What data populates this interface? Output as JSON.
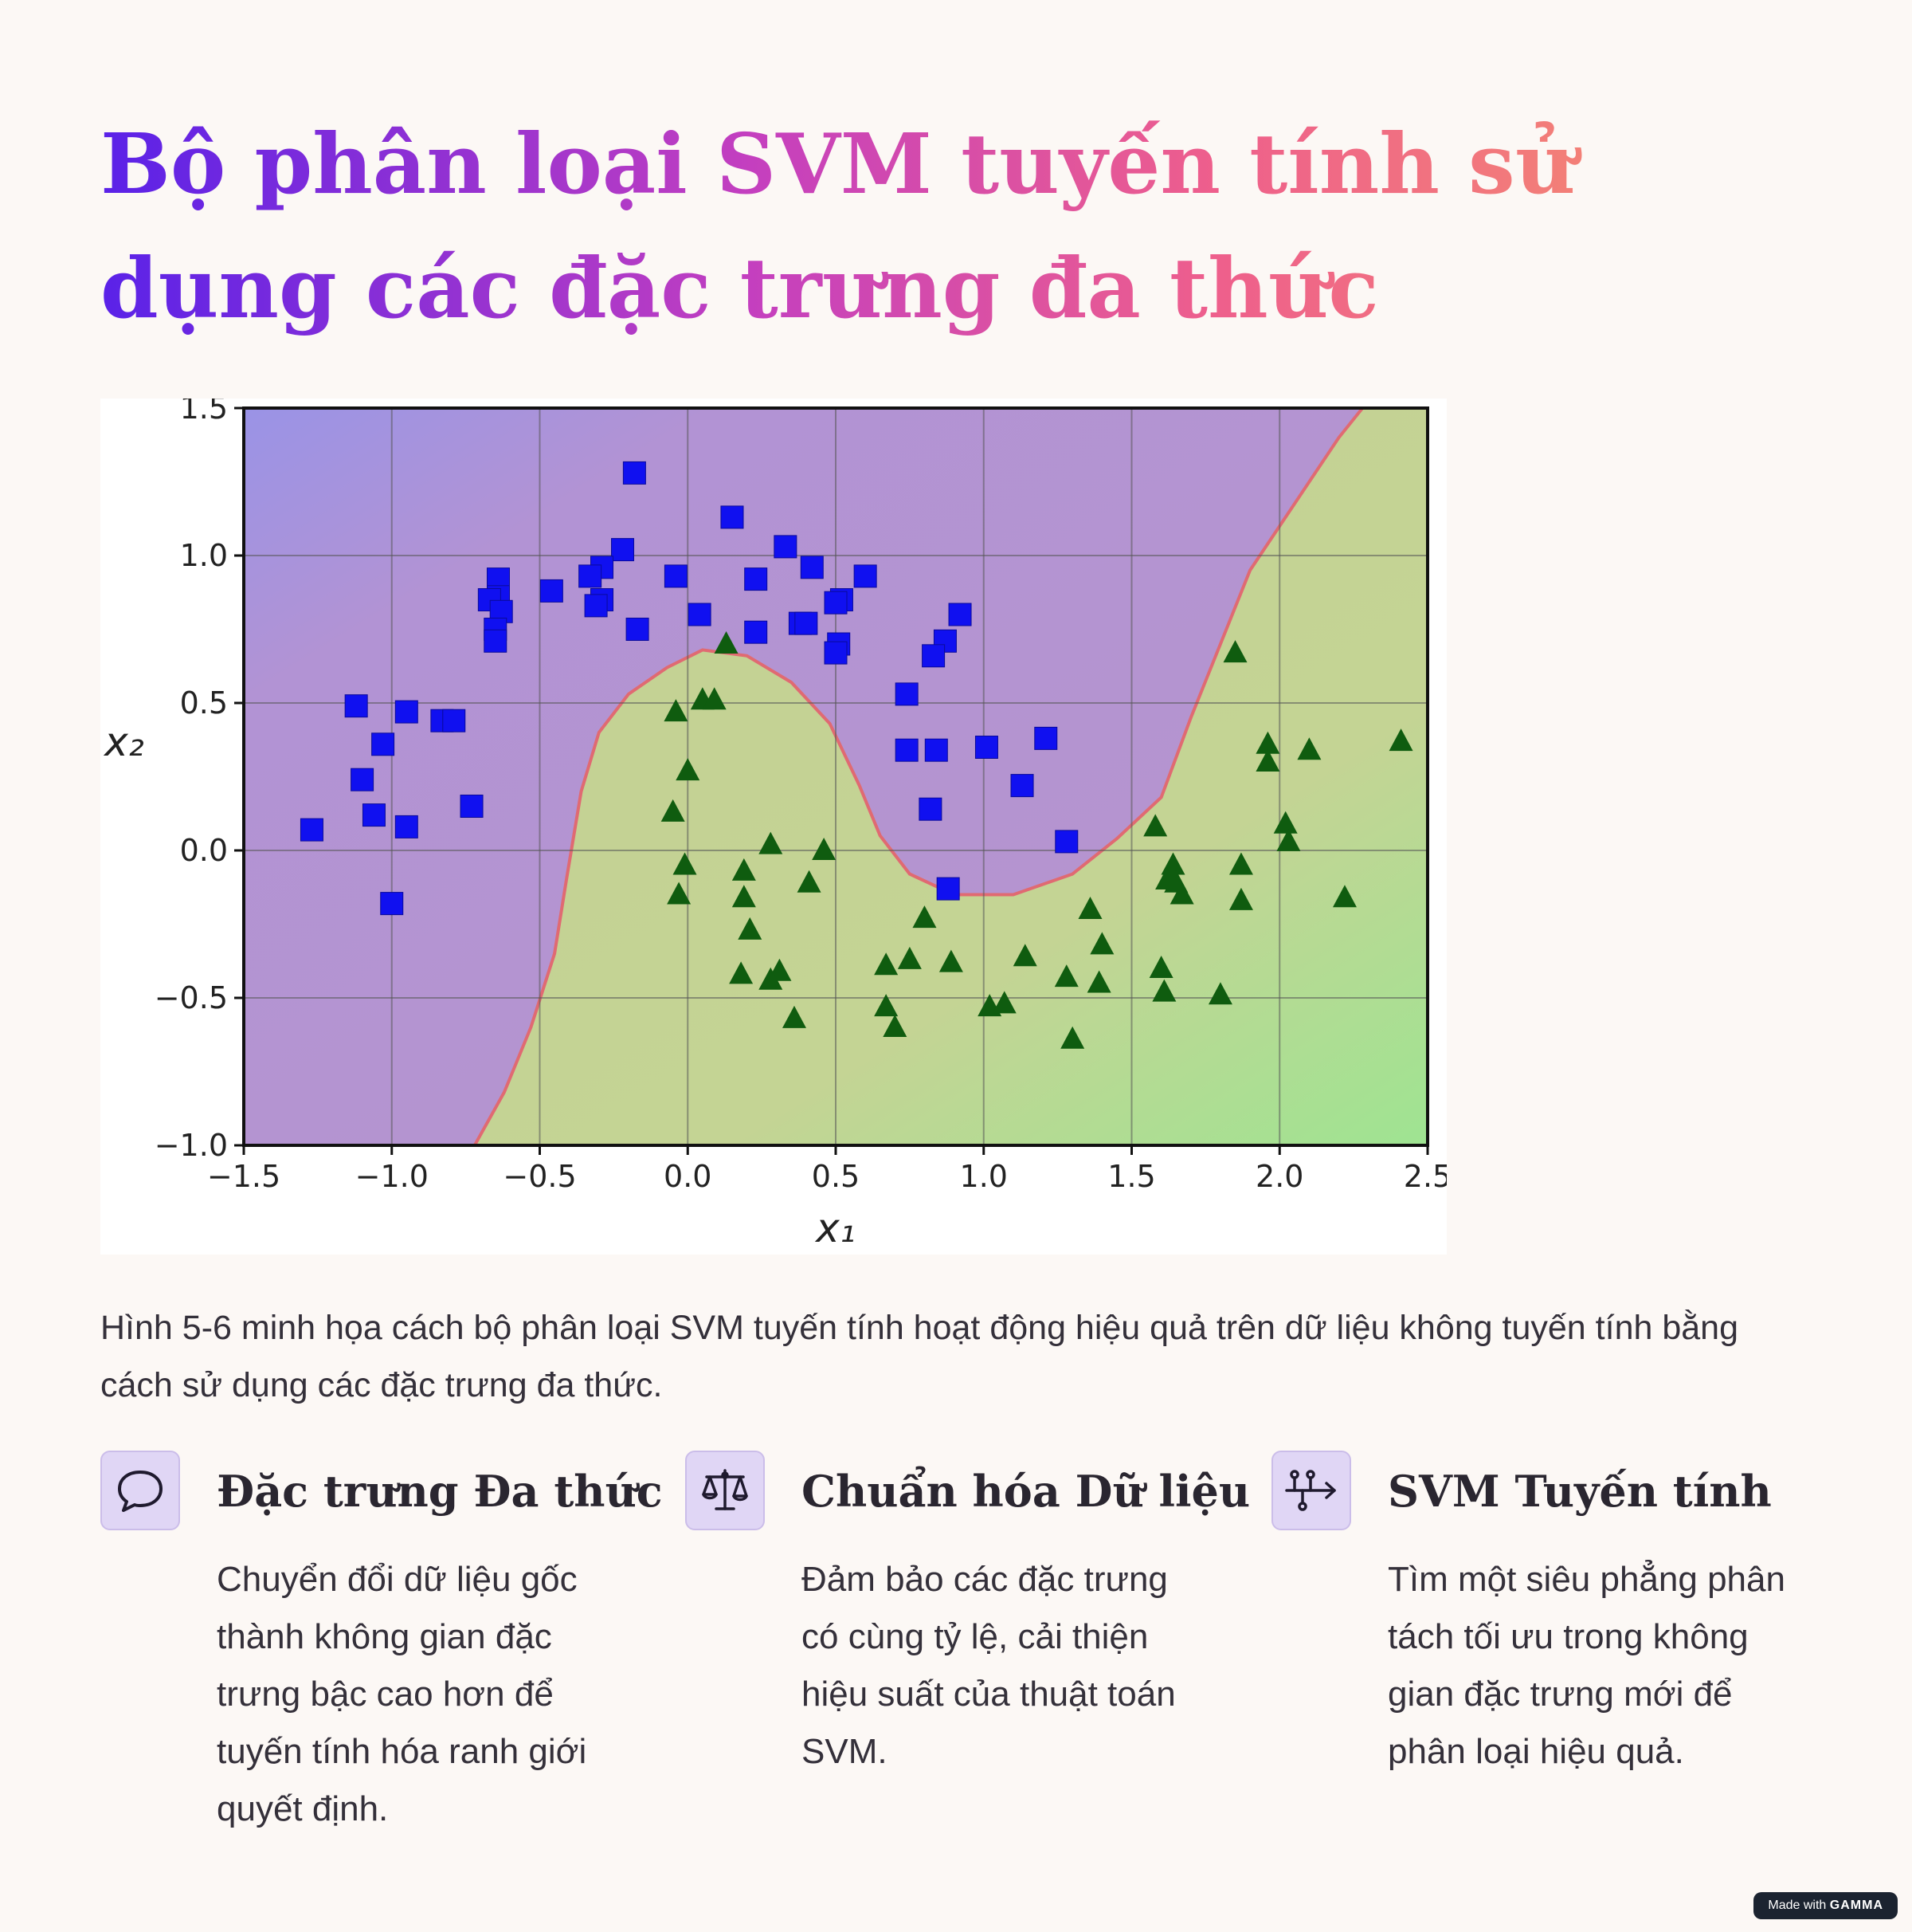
{
  "title": "Bộ phân loại SVM tuyến tính sử dụng các đặc trưng đa thức",
  "caption": "Hình 5-6 minh họa cách bộ phân loại SVM tuyến tính hoạt động hiệu quả trên dữ liệu không tuyến tính bằng cách sử dụng các đặc trưng đa thức.",
  "features": [
    {
      "icon": "chat-bubble-icon",
      "title": "Đặc trưng Đa thức",
      "text": "Chuyển đổi dữ liệu gốc thành không gian đặc trưng bậc cao hơn để tuyến tính hóa ranh giới quyết định."
    },
    {
      "icon": "balance-scale-icon",
      "title": "Chuẩn hóa Dữ liệu",
      "text": "Đảm bảo các đặc trưng có cùng tỷ lệ, cải thiện hiệu suất của thuật toán SVM."
    },
    {
      "icon": "split-arrow-icon",
      "title": "SVM Tuyến tính",
      "text": "Tìm một siêu phẳng phân tách tối ưu trong không gian đặc trưng mới để phân loại hiệu quả."
    }
  ],
  "badge": {
    "prefix": "Made with",
    "brand": "GAMMA"
  },
  "chart_data": {
    "type": "scatter",
    "xlabel": "x₁",
    "ylabel": "x₂",
    "xlim": [
      -1.5,
      2.5
    ],
    "ylim": [
      -1.0,
      1.5
    ],
    "xticks": [
      -1.5,
      -1.0,
      -0.5,
      0.0,
      0.5,
      1.0,
      1.5,
      2.0,
      2.5
    ],
    "yticks": [
      -1.0,
      -0.5,
      0.0,
      0.5,
      1.0,
      1.5
    ],
    "xtick_labels": [
      "−1.5",
      "−1.0",
      "−0.5",
      "0.0",
      "0.5",
      "1.0",
      "1.5",
      "2.0",
      "2.5"
    ],
    "ytick_labels": [
      "−1.0",
      "−0.5",
      "0.0",
      "0.5",
      "1.0",
      "1.5"
    ],
    "grid": true,
    "colors": {
      "class_0_region": "#b795cc",
      "class_1_region": "#c5d494",
      "class_0_marker": "#1010f0",
      "class_1_marker": "#0f5c0f",
      "boundary": "#e06a72"
    },
    "boundary": [
      [
        -0.72,
        -1.0
      ],
      [
        -0.62,
        -0.82
      ],
      [
        -0.53,
        -0.6
      ],
      [
        -0.45,
        -0.35
      ],
      [
        -0.41,
        -0.1
      ],
      [
        -0.36,
        0.2
      ],
      [
        -0.3,
        0.4
      ],
      [
        -0.2,
        0.53
      ],
      [
        -0.07,
        0.62
      ],
      [
        0.05,
        0.68
      ],
      [
        0.2,
        0.66
      ],
      [
        0.35,
        0.57
      ],
      [
        0.48,
        0.43
      ],
      [
        0.58,
        0.22
      ],
      [
        0.65,
        0.05
      ],
      [
        0.75,
        -0.08
      ],
      [
        0.9,
        -0.15
      ],
      [
        1.1,
        -0.15
      ],
      [
        1.3,
        -0.08
      ],
      [
        1.45,
        0.04
      ],
      [
        1.6,
        0.18
      ],
      [
        1.7,
        0.45
      ],
      [
        1.8,
        0.7
      ],
      [
        1.9,
        0.95
      ],
      [
        2.0,
        1.1
      ],
      [
        2.1,
        1.25
      ],
      [
        2.2,
        1.4
      ],
      [
        2.28,
        1.5
      ]
    ],
    "series": [
      {
        "marker": "square",
        "points": [
          [
            -0.18,
            1.28
          ],
          [
            0.15,
            1.13
          ],
          [
            -0.22,
            1.02
          ],
          [
            0.33,
            1.03
          ],
          [
            -0.29,
            0.96
          ],
          [
            -0.33,
            0.93
          ],
          [
            -0.04,
            0.93
          ],
          [
            0.23,
            0.92
          ],
          [
            0.42,
            0.96
          ],
          [
            0.6,
            0.93
          ],
          [
            -0.46,
            0.88
          ],
          [
            -0.64,
            0.92
          ],
          [
            -0.64,
            0.86
          ],
          [
            -0.67,
            0.85
          ],
          [
            -0.29,
            0.85
          ],
          [
            -0.31,
            0.83
          ],
          [
            0.04,
            0.8
          ],
          [
            0.52,
            0.85
          ],
          [
            0.5,
            0.84
          ],
          [
            -0.63,
            0.81
          ],
          [
            0.38,
            0.77
          ],
          [
            0.4,
            0.77
          ],
          [
            0.23,
            0.74
          ],
          [
            -0.17,
            0.75
          ],
          [
            -0.65,
            0.75
          ],
          [
            -0.65,
            0.71
          ],
          [
            0.51,
            0.7
          ],
          [
            0.5,
            0.67
          ],
          [
            0.92,
            0.8
          ],
          [
            0.87,
            0.71
          ],
          [
            0.83,
            0.66
          ],
          [
            0.74,
            0.53
          ],
          [
            -1.12,
            0.49
          ],
          [
            -0.95,
            0.47
          ],
          [
            -0.83,
            0.44
          ],
          [
            -0.79,
            0.44
          ],
          [
            -1.03,
            0.36
          ],
          [
            0.74,
            0.34
          ],
          [
            0.84,
            0.34
          ],
          [
            1.01,
            0.35
          ],
          [
            1.21,
            0.38
          ],
          [
            -1.1,
            0.24
          ],
          [
            1.13,
            0.22
          ],
          [
            -0.73,
            0.15
          ],
          [
            -1.06,
            0.12
          ],
          [
            0.82,
            0.14
          ],
          [
            -0.95,
            0.08
          ],
          [
            -1.27,
            0.07
          ],
          [
            1.28,
            0.03
          ],
          [
            0.88,
            -0.13
          ],
          [
            -1.0,
            -0.18
          ]
        ]
      },
      {
        "marker": "triangle",
        "points": [
          [
            0.13,
            0.7
          ],
          [
            1.85,
            0.67
          ],
          [
            0.05,
            0.51
          ],
          [
            0.09,
            0.51
          ],
          [
            -0.04,
            0.47
          ],
          [
            2.41,
            0.37
          ],
          [
            1.96,
            0.36
          ],
          [
            2.1,
            0.34
          ],
          [
            1.96,
            0.3
          ],
          [
            0.0,
            0.27
          ],
          [
            -0.05,
            0.13
          ],
          [
            1.58,
            0.08
          ],
          [
            2.02,
            0.09
          ],
          [
            2.03,
            0.03
          ],
          [
            0.28,
            0.02
          ],
          [
            0.46,
            0.0
          ],
          [
            -0.01,
            -0.05
          ],
          [
            1.87,
            -0.05
          ],
          [
            1.64,
            -0.05
          ],
          [
            0.19,
            -0.07
          ],
          [
            1.62,
            -0.1
          ],
          [
            1.65,
            -0.11
          ],
          [
            0.41,
            -0.11
          ],
          [
            1.63,
            -0.1
          ],
          [
            -0.03,
            -0.15
          ],
          [
            1.67,
            -0.15
          ],
          [
            2.22,
            -0.16
          ],
          [
            0.19,
            -0.16
          ],
          [
            1.87,
            -0.17
          ],
          [
            1.36,
            -0.2
          ],
          [
            0.8,
            -0.23
          ],
          [
            0.21,
            -0.27
          ],
          [
            1.4,
            -0.32
          ],
          [
            1.14,
            -0.36
          ],
          [
            0.75,
            -0.37
          ],
          [
            0.67,
            -0.39
          ],
          [
            0.89,
            -0.38
          ],
          [
            1.6,
            -0.4
          ],
          [
            0.31,
            -0.41
          ],
          [
            0.18,
            -0.42
          ],
          [
            1.28,
            -0.43
          ],
          [
            0.28,
            -0.44
          ],
          [
            1.39,
            -0.45
          ],
          [
            1.61,
            -0.48
          ],
          [
            1.8,
            -0.49
          ],
          [
            1.02,
            -0.53
          ],
          [
            1.07,
            -0.52
          ],
          [
            0.67,
            -0.53
          ],
          [
            0.36,
            -0.57
          ],
          [
            0.7,
            -0.6
          ],
          [
            1.3,
            -0.64
          ]
        ]
      }
    ]
  }
}
